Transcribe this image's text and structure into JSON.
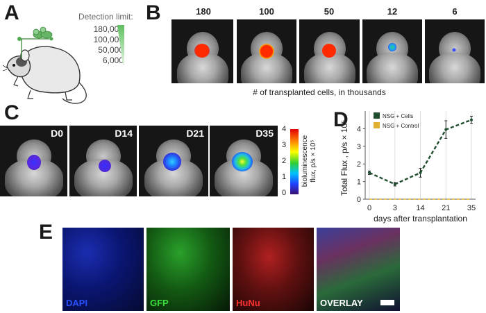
{
  "panel_letters": {
    "a": "A",
    "b": "B",
    "c": "C",
    "d": "D",
    "e": "E"
  },
  "panel_a": {
    "detection_title": "Detection limit:",
    "detection_values": [
      "180,000",
      "100,000",
      "50,000",
      "6,000"
    ]
  },
  "panel_b": {
    "cell_counts": [
      "180",
      "100",
      "50",
      "12",
      "6"
    ],
    "caption": "# of transplanted cells, in thousands"
  },
  "panel_c": {
    "timepoints": [
      "D0",
      "D14",
      "D21",
      "D35"
    ],
    "colorbar_ticks": [
      "4",
      "3",
      "2",
      "1",
      "0"
    ],
    "colorbar_label_line1": "bioluminescence",
    "colorbar_label_line2": "flux, p/s × 10⁵"
  },
  "panel_e": {
    "labels": [
      "DAPI",
      "GFP",
      "HuNu",
      "OVERLAY"
    ]
  },
  "colors": {
    "cells_series": "#1f4d2e",
    "control_series": "#e0b030"
  },
  "chart_data": {
    "type": "line",
    "title": "",
    "ylabel": "Total Flux , p/s × 10⁵",
    "xlabel": "days after transplantation",
    "categories": [
      "0",
      "3",
      "14",
      "21",
      "35"
    ],
    "ylim": [
      0,
      5
    ],
    "yticks": [
      "0",
      "1",
      "2",
      "3",
      "4"
    ],
    "series": [
      {
        "name": "NSG + Cells",
        "values": [
          1.5,
          0.85,
          1.5,
          3.95,
          4.5
        ],
        "errors": [
          0.1,
          0.1,
          0.25,
          0.5,
          0.2
        ],
        "color": "#1f4d2e",
        "style": "dashed"
      },
      {
        "name": "NSG + Control",
        "values": [
          0,
          0,
          0,
          0,
          0
        ],
        "errors": [
          0,
          0,
          0,
          0,
          0
        ],
        "color": "#e0b030",
        "style": "dashed"
      }
    ]
  }
}
